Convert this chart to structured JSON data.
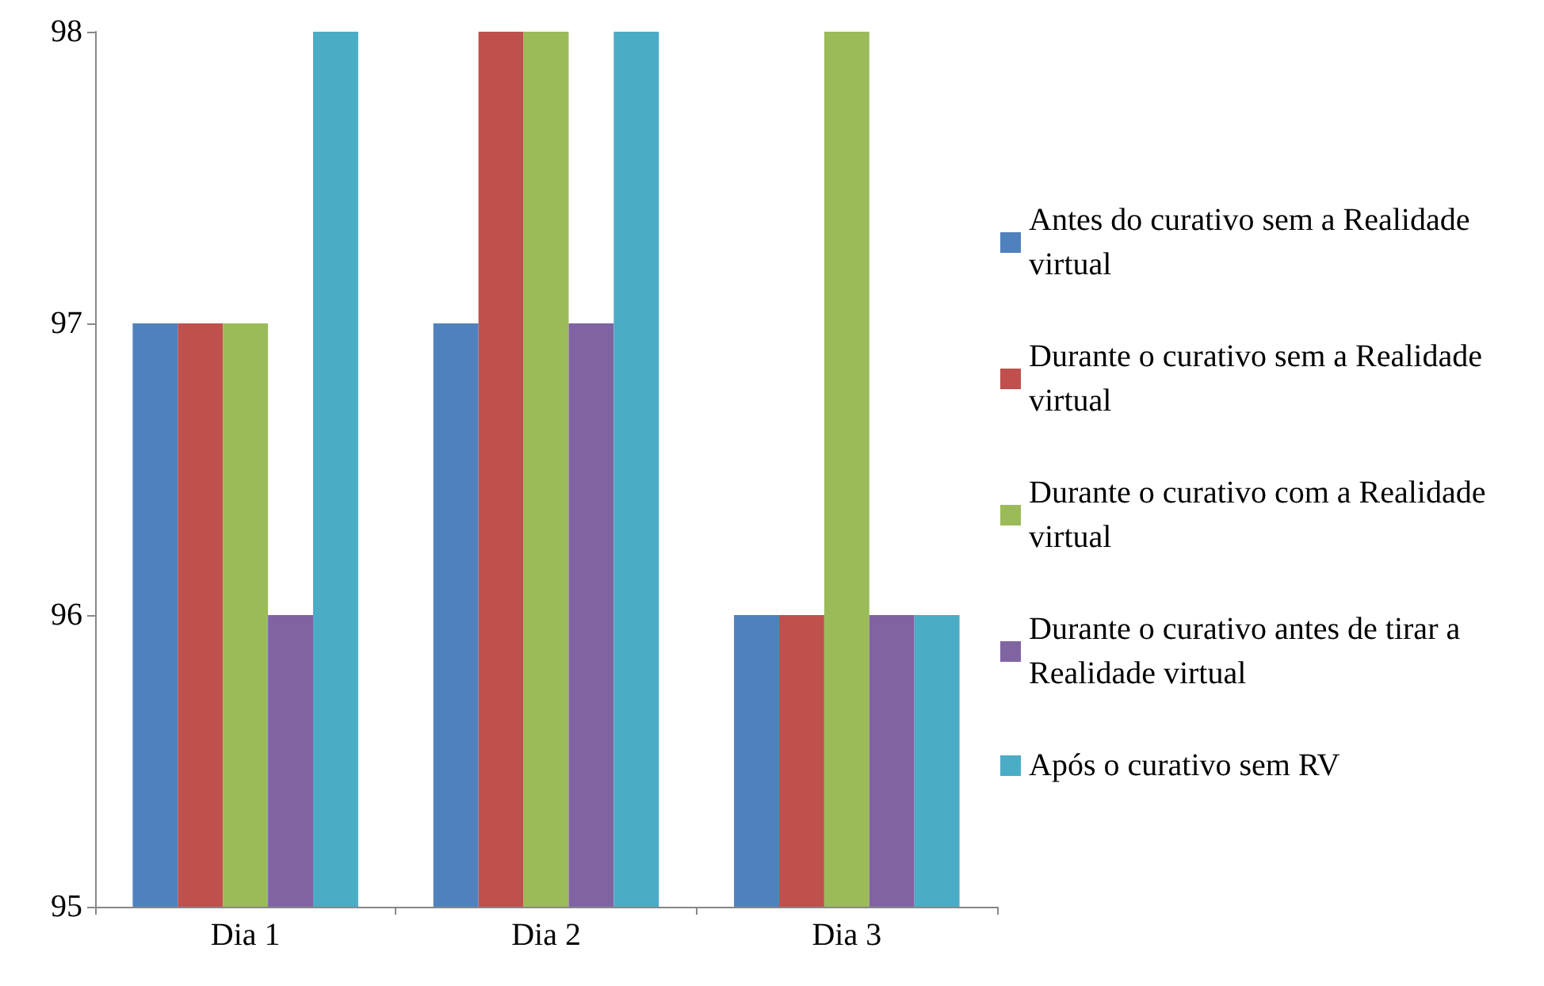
{
  "chart_data": {
    "type": "bar",
    "categories": [
      "Dia 1",
      "Dia 2",
      "Dia 3"
    ],
    "series": [
      {
        "name": "Antes do curativo sem a Realidade virtual",
        "color": "#4f81bd",
        "values": [
          97,
          97,
          96
        ]
      },
      {
        "name": "Durante o curativo sem a Realidade virtual",
        "color": "#c0504d",
        "values": [
          97,
          98,
          96
        ]
      },
      {
        "name": "Durante o curativo com a Realidade virtual",
        "color": "#9bbb59",
        "values": [
          97,
          98,
          98
        ]
      },
      {
        "name": "Durante o curativo antes de tirar a Realidade virtual",
        "color": "#8064a2",
        "values": [
          96,
          97,
          96
        ]
      },
      {
        "name": "Após o curativo sem RV",
        "color": "#4bacc6",
        "values": [
          98,
          98,
          96
        ]
      }
    ],
    "ylim": [
      95,
      98
    ],
    "yticks": [
      95,
      96,
      97,
      98
    ],
    "grid": false,
    "legend": "right"
  }
}
